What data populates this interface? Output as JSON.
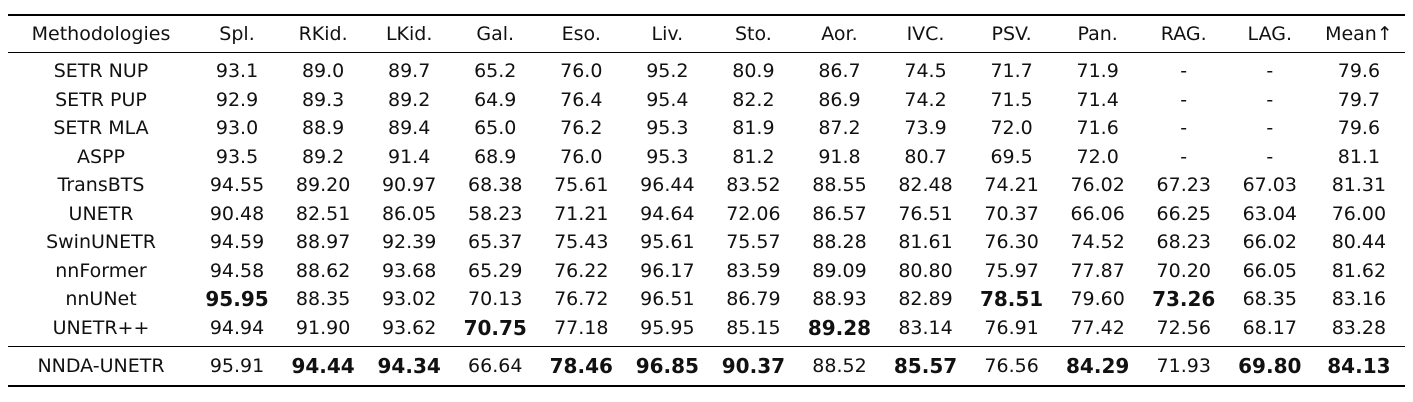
{
  "chart_data": {
    "type": "table",
    "columns": [
      "Methodologies",
      "Spl.",
      "RKid.",
      "LKid.",
      "Gal.",
      "Eso.",
      "Liv.",
      "Sto.",
      "Aor.",
      "IVC.",
      "PSV.",
      "Pan.",
      "RAG.",
      "LAG.",
      "Mean↑"
    ],
    "rows": [
      {
        "method": "SETR NUP",
        "values": [
          "93.1",
          "89.0",
          "89.7",
          "65.2",
          "76.0",
          "95.2",
          "80.9",
          "86.7",
          "74.5",
          "71.7",
          "71.9",
          "-",
          "-",
          "79.6"
        ],
        "bold": []
      },
      {
        "method": "SETR PUP",
        "values": [
          "92.9",
          "89.3",
          "89.2",
          "64.9",
          "76.4",
          "95.4",
          "82.2",
          "86.9",
          "74.2",
          "71.5",
          "71.4",
          "-",
          "-",
          "79.7"
        ],
        "bold": []
      },
      {
        "method": "SETR MLA",
        "values": [
          "93.0",
          "88.9",
          "89.4",
          "65.0",
          "76.2",
          "95.3",
          "81.9",
          "87.2",
          "73.9",
          "72.0",
          "71.6",
          "-",
          "-",
          "79.6"
        ],
        "bold": []
      },
      {
        "method": "ASPP",
        "values": [
          "93.5",
          "89.2",
          "91.4",
          "68.9",
          "76.0",
          "95.3",
          "81.2",
          "91.8",
          "80.7",
          "69.5",
          "72.0",
          "-",
          "-",
          "81.1"
        ],
        "bold": []
      },
      {
        "method": "TransBTS",
        "values": [
          "94.55",
          "89.20",
          "90.97",
          "68.38",
          "75.61",
          "96.44",
          "83.52",
          "88.55",
          "82.48",
          "74.21",
          "76.02",
          "67.23",
          "67.03",
          "81.31"
        ],
        "bold": []
      },
      {
        "method": "UNETR",
        "values": [
          "90.48",
          "82.51",
          "86.05",
          "58.23",
          "71.21",
          "94.64",
          "72.06",
          "86.57",
          "76.51",
          "70.37",
          "66.06",
          "66.25",
          "63.04",
          "76.00"
        ],
        "bold": []
      },
      {
        "method": "SwinUNETR",
        "values": [
          "94.59",
          "88.97",
          "92.39",
          "65.37",
          "75.43",
          "95.61",
          "75.57",
          "88.28",
          "81.61",
          "76.30",
          "74.52",
          "68.23",
          "66.02",
          "80.44"
        ],
        "bold": []
      },
      {
        "method": "nnFormer",
        "values": [
          "94.58",
          "88.62",
          "93.68",
          "65.29",
          "76.22",
          "96.17",
          "83.59",
          "89.09",
          "80.80",
          "75.97",
          "77.87",
          "70.20",
          "66.05",
          "81.62"
        ],
        "bold": []
      },
      {
        "method": "nnUNet",
        "values": [
          "95.95",
          "88.35",
          "93.02",
          "70.13",
          "76.72",
          "96.51",
          "86.79",
          "88.93",
          "82.89",
          "78.51",
          "79.60",
          "73.26",
          "68.35",
          "83.16"
        ],
        "bold": [
          0,
          9,
          11
        ]
      },
      {
        "method": "UNETR++",
        "values": [
          "94.94",
          "91.90",
          "93.62",
          "70.75",
          "77.18",
          "95.95",
          "85.15",
          "89.28",
          "83.14",
          "76.91",
          "77.42",
          "72.56",
          "68.17",
          "83.28"
        ],
        "bold": [
          3,
          7
        ]
      }
    ],
    "highlight_row": {
      "method": "NNDA-UNETR",
      "values": [
        "95.91",
        "94.44",
        "94.34",
        "66.64",
        "78.46",
        "96.85",
        "90.37",
        "88.52",
        "85.57",
        "76.56",
        "84.29",
        "71.93",
        "69.80",
        "84.13"
      ],
      "bold": [
        1,
        2,
        4,
        5,
        6,
        8,
        10,
        12,
        13
      ]
    }
  }
}
